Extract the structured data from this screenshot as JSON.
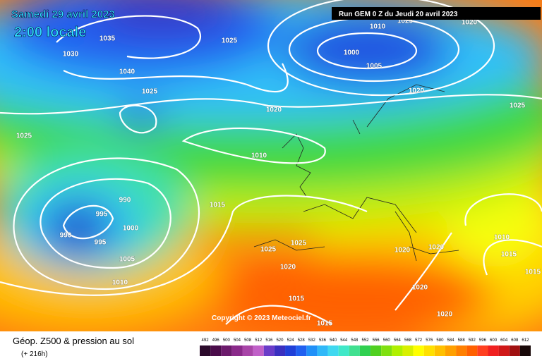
{
  "header": {
    "date": "Samedi 29 avril 2023",
    "time": "2:00 locale",
    "run": "Run GEM 0 Z du Jeudi 20 avril 2023"
  },
  "isobar_labels": [
    1035,
    1025,
    1030,
    1040,
    1025,
    1010,
    1005,
    1020,
    1000,
    1025,
    1020,
    1020,
    1025,
    1010,
    1025,
    990,
    995,
    1000,
    995,
    990,
    1005,
    1010,
    1015,
    1025,
    1025,
    1020,
    1020,
    1020,
    1010,
    1015,
    1015,
    1015,
    1020,
    1020,
    1015
  ],
  "copyright": "Copyright © 2023 Meteociel.fr",
  "footer": {
    "title": "Géop. Z500 & pression au sol",
    "lead": "(+ 216h)"
  },
  "legend": {
    "values": [
      492,
      496,
      500,
      504,
      508,
      512,
      516,
      520,
      524,
      528,
      532,
      536,
      540,
      544,
      548,
      552,
      556,
      560,
      564,
      568,
      572,
      576,
      580,
      584,
      588,
      592,
      596,
      600,
      604,
      608,
      612
    ],
    "colors": [
      "#2b0a2b",
      "#4a0c4a",
      "#6b1a6b",
      "#8a2a8a",
      "#a845a8",
      "#c060c8",
      "#6a3cc8",
      "#3a30c0",
      "#2040d8",
      "#2060f0",
      "#2090f8",
      "#30b8f8",
      "#40d8f0",
      "#40e8c8",
      "#40e090",
      "#30d050",
      "#50d020",
      "#80e010",
      "#b0f000",
      "#d8f000",
      "#ffff00",
      "#ffe000",
      "#ffc000",
      "#ffa000",
      "#ff8000",
      "#ff6000",
      "#ff4020",
      "#f02020",
      "#d01818",
      "#a01010",
      "#180808"
    ]
  }
}
